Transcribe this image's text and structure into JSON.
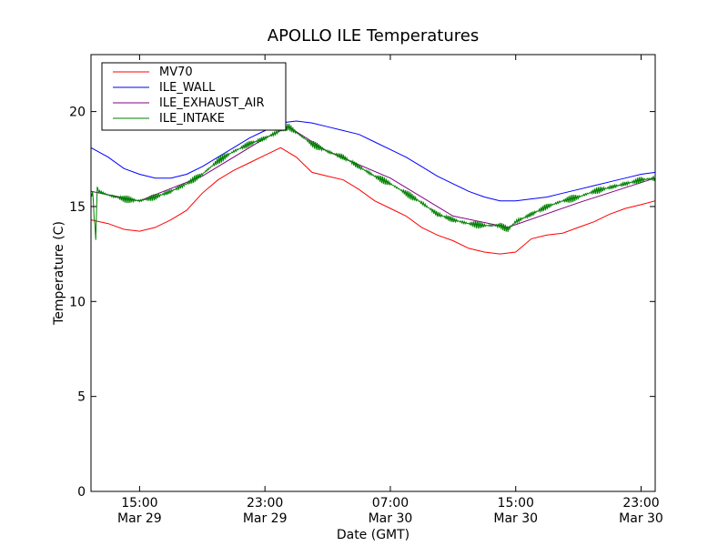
{
  "chart_data": {
    "type": "line",
    "title": "APOLLO ILE Temperatures",
    "xlabel": "Date (GMT)",
    "ylabel": "Temperature (C)",
    "xlim": [
      11.9,
      47.9
    ],
    "ylim": [
      0,
      23
    ],
    "yticks": [
      0,
      5,
      10,
      15,
      20
    ],
    "xticks": [
      {
        "x": 15,
        "line1": "15:00",
        "line2": "Mar 29"
      },
      {
        "x": 23,
        "line1": "23:00",
        "line2": "Mar 29"
      },
      {
        "x": 31,
        "line1": "07:00",
        "line2": "Mar 30"
      },
      {
        "x": 39,
        "line1": "15:00",
        "line2": "Mar 30"
      },
      {
        "x": 47,
        "line1": "23:00",
        "line2": "Mar 30"
      }
    ],
    "legend_position": "top-left",
    "series": [
      {
        "name": "MV70",
        "color": "#ff0000",
        "x": [
          11.9,
          13,
          14,
          15,
          16,
          17,
          18,
          19,
          20,
          21,
          22,
          23,
          24,
          25,
          26,
          27,
          28,
          29,
          30,
          31,
          32,
          33,
          34,
          35,
          36,
          37,
          38,
          39,
          40,
          41,
          42,
          43,
          44,
          45,
          46,
          47,
          47.9
        ],
        "values": [
          14.3,
          14.1,
          13.8,
          13.7,
          13.9,
          14.3,
          14.8,
          15.7,
          16.4,
          16.9,
          17.3,
          17.7,
          18.1,
          17.6,
          16.8,
          16.6,
          16.4,
          15.9,
          15.3,
          14.9,
          14.5,
          13.9,
          13.5,
          13.2,
          12.8,
          12.6,
          12.5,
          12.6,
          13.3,
          13.5,
          13.6,
          13.9,
          14.2,
          14.6,
          14.9,
          15.1,
          15.3
        ]
      },
      {
        "name": "ILE_WALL",
        "color": "#0000ff",
        "x": [
          11.9,
          13,
          14,
          15,
          16,
          17,
          18,
          19,
          20,
          21,
          22,
          23,
          24,
          25,
          26,
          27,
          28,
          29,
          30,
          31,
          32,
          33,
          34,
          35,
          36,
          37,
          38,
          39,
          40,
          41,
          42,
          43,
          44,
          45,
          46,
          47,
          47.9
        ],
        "values": [
          18.1,
          17.6,
          17.0,
          16.7,
          16.5,
          16.5,
          16.7,
          17.1,
          17.6,
          18.1,
          18.6,
          19.0,
          19.4,
          19.5,
          19.4,
          19.2,
          19.0,
          18.8,
          18.4,
          18.0,
          17.6,
          17.1,
          16.6,
          16.2,
          15.8,
          15.5,
          15.3,
          15.3,
          15.4,
          15.5,
          15.7,
          15.9,
          16.1,
          16.3,
          16.5,
          16.7,
          16.8
        ]
      },
      {
        "name": "ILE_EXHAUST_AIR",
        "color": "#800080",
        "x": [
          11.9,
          15,
          19,
          23,
          24.5,
          27,
          31,
          35,
          38.5,
          43,
          47.9
        ],
        "values": [
          15.8,
          15.3,
          16.6,
          18.6,
          19.2,
          17.9,
          16.5,
          14.5,
          13.9,
          15.2,
          16.5
        ]
      },
      {
        "name": "ILE_INTAKE",
        "color": "#008000",
        "x": [
          11.9,
          12,
          12.2,
          12.3,
          12.4,
          13,
          14,
          15,
          16,
          17,
          18,
          19,
          20,
          21,
          22,
          23,
          24,
          24.5,
          25,
          26,
          27,
          28,
          29,
          30,
          31,
          32,
          33,
          33.5,
          34,
          35,
          36,
          37,
          38,
          38.5,
          39,
          40,
          41,
          42,
          43,
          44,
          45,
          46,
          47,
          47.9
        ],
        "values": [
          15.5,
          15.8,
          13.3,
          16.0,
          15.8,
          15.6,
          15.4,
          15.3,
          15.5,
          15.8,
          16.2,
          16.7,
          17.4,
          17.9,
          18.3,
          18.6,
          19.0,
          19.2,
          18.9,
          18.3,
          17.9,
          17.6,
          17.1,
          16.6,
          16.2,
          15.7,
          15.2,
          14.9,
          14.6,
          14.3,
          14.1,
          14.0,
          14.0,
          13.8,
          14.2,
          14.6,
          15.0,
          15.3,
          15.5,
          15.8,
          16.0,
          16.2,
          16.4,
          16.5
        ]
      }
    ]
  }
}
